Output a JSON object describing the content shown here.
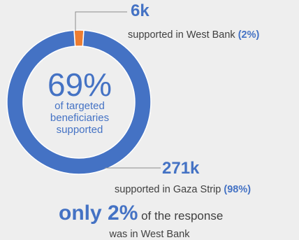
{
  "chart_data": {
    "type": "pie",
    "style": "donut",
    "slices": [
      {
        "label": "West Bank",
        "value": 6,
        "percent": 2,
        "color": "#ed7d31"
      },
      {
        "label": "Gaza Strip",
        "value": 271,
        "percent": 98,
        "color": "#4472c4"
      }
    ],
    "center": {
      "value": "69%",
      "label_lines": [
        "of targeted",
        "beneficiaries",
        "supported"
      ]
    },
    "callouts": {
      "west_bank": {
        "value": "6k",
        "text": "supported in West Bank",
        "pct": "(2%)"
      },
      "gaza": {
        "value": "271k",
        "text": "supported in Gaza Strip",
        "pct": "(98%)"
      }
    },
    "footer": {
      "highlight": "only 2%",
      "text": " of the response",
      "line2": "was in West Bank"
    }
  }
}
